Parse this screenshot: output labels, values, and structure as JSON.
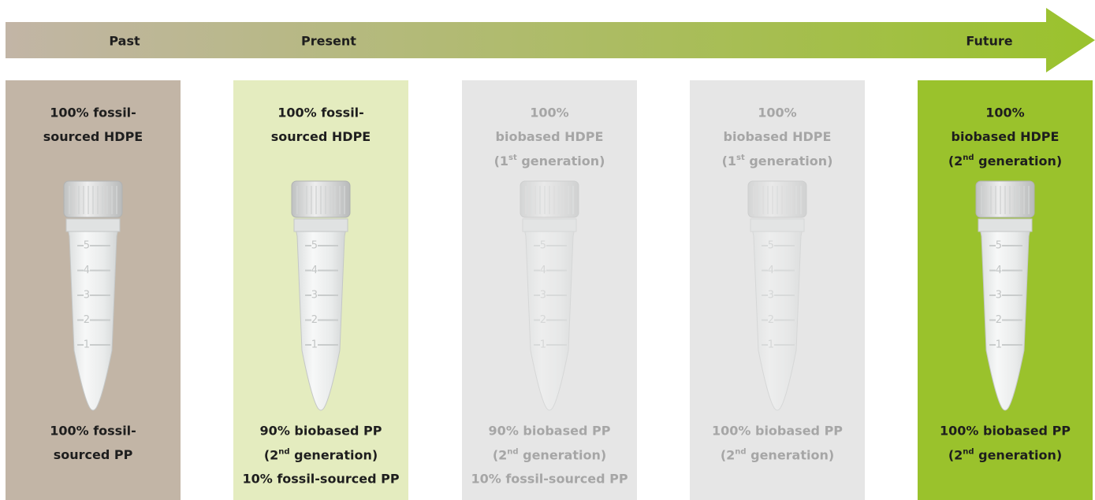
{
  "timeline": {
    "labels": [
      "Past",
      "Present",
      "Future"
    ],
    "start_color": "#c2b5a6",
    "end_color": "#9ac22c"
  },
  "tube_scale": [
    "1",
    "2",
    "3",
    "4",
    "5"
  ],
  "columns": [
    {
      "color": "#c2b5a6",
      "text_color": "#1e1e1e",
      "faded": false,
      "top": [
        "100% fossil-",
        "sourced HDPE"
      ],
      "bottom": [
        "100% fossil-",
        "sourced PP"
      ]
    },
    {
      "color": "#e4ecbf",
      "text_color": "#1e1e1e",
      "faded": false,
      "top": [
        "100% fossil-",
        "sourced HDPE"
      ],
      "bottom": [
        "90% biobased PP",
        {
          "text": "(2",
          "sup": "nd",
          "tail": " generation)"
        },
        "10% fossil-sourced PP"
      ]
    },
    {
      "color": "#e6e6e6",
      "text_color": "#a6a6a6",
      "faded": true,
      "top": [
        "100%",
        "biobased HDPE",
        {
          "text": "(1",
          "sup": "st",
          "tail": " generation)"
        }
      ],
      "bottom": [
        "90% biobased PP",
        {
          "text": "(2",
          "sup": "nd",
          "tail": " generation)"
        },
        "10% fossil-sourced PP"
      ]
    },
    {
      "color": "#e6e6e6",
      "text_color": "#a6a6a6",
      "faded": true,
      "top": [
        "100%",
        "biobased HDPE",
        {
          "text": "(1",
          "sup": "st",
          "tail": " generation)"
        }
      ],
      "bottom": [
        "100% biobased PP",
        {
          "text": "(2",
          "sup": "nd",
          "tail": " generation)"
        }
      ]
    },
    {
      "color": "#9ac22c",
      "text_color": "#1e1e1e",
      "faded": false,
      "top": [
        "100%",
        "biobased HDPE",
        {
          "text": "(2",
          "sup": "nd",
          "tail": " generation)"
        }
      ],
      "bottom": [
        "100% biobased PP",
        {
          "text": "(2",
          "sup": "nd",
          "tail": " generation)"
        }
      ]
    }
  ]
}
